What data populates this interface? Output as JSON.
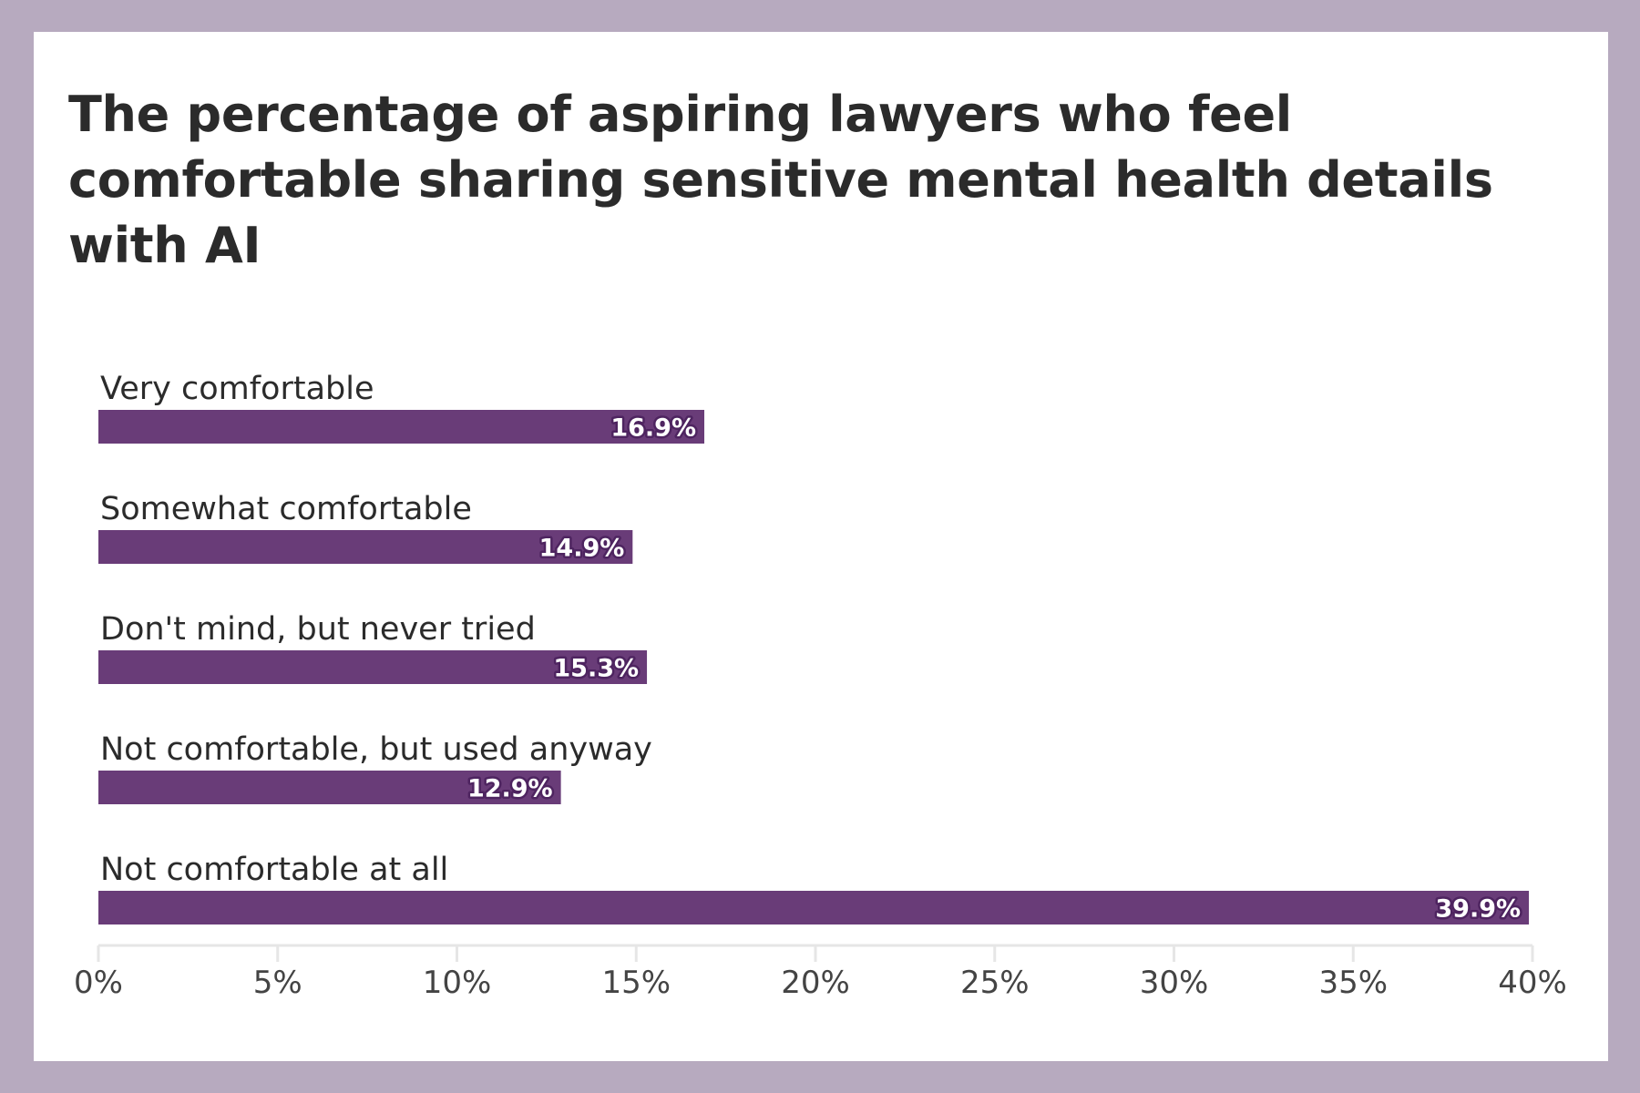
{
  "chart_data": {
    "type": "bar",
    "orientation": "horizontal",
    "title": "The percentage of aspiring lawyers who feel comfortable sharing sensitive mental health details with AI",
    "categories": [
      "Very comfortable",
      "Somewhat comfortable",
      "Don't mind, but never tried",
      "Not comfortable, but used anyway",
      "Not comfortable at all"
    ],
    "values": [
      16.9,
      14.9,
      15.3,
      12.9,
      39.9
    ],
    "value_labels": [
      "16.9%",
      "14.9%",
      "15.3%",
      "12.9%",
      "39.9%"
    ],
    "xlim": [
      0,
      40
    ],
    "xticks": [
      0,
      5,
      10,
      15,
      20,
      25,
      30,
      35,
      40
    ],
    "xtick_labels": [
      "0%",
      "5%",
      "10%",
      "15%",
      "20%",
      "25%",
      "30%",
      "35%",
      "40%"
    ],
    "grid": false,
    "legend": "none",
    "colors": {
      "bar": "#693c78",
      "background": "#b7aabf",
      "card": "#ffffff",
      "axis": "#e6e6e6"
    }
  }
}
